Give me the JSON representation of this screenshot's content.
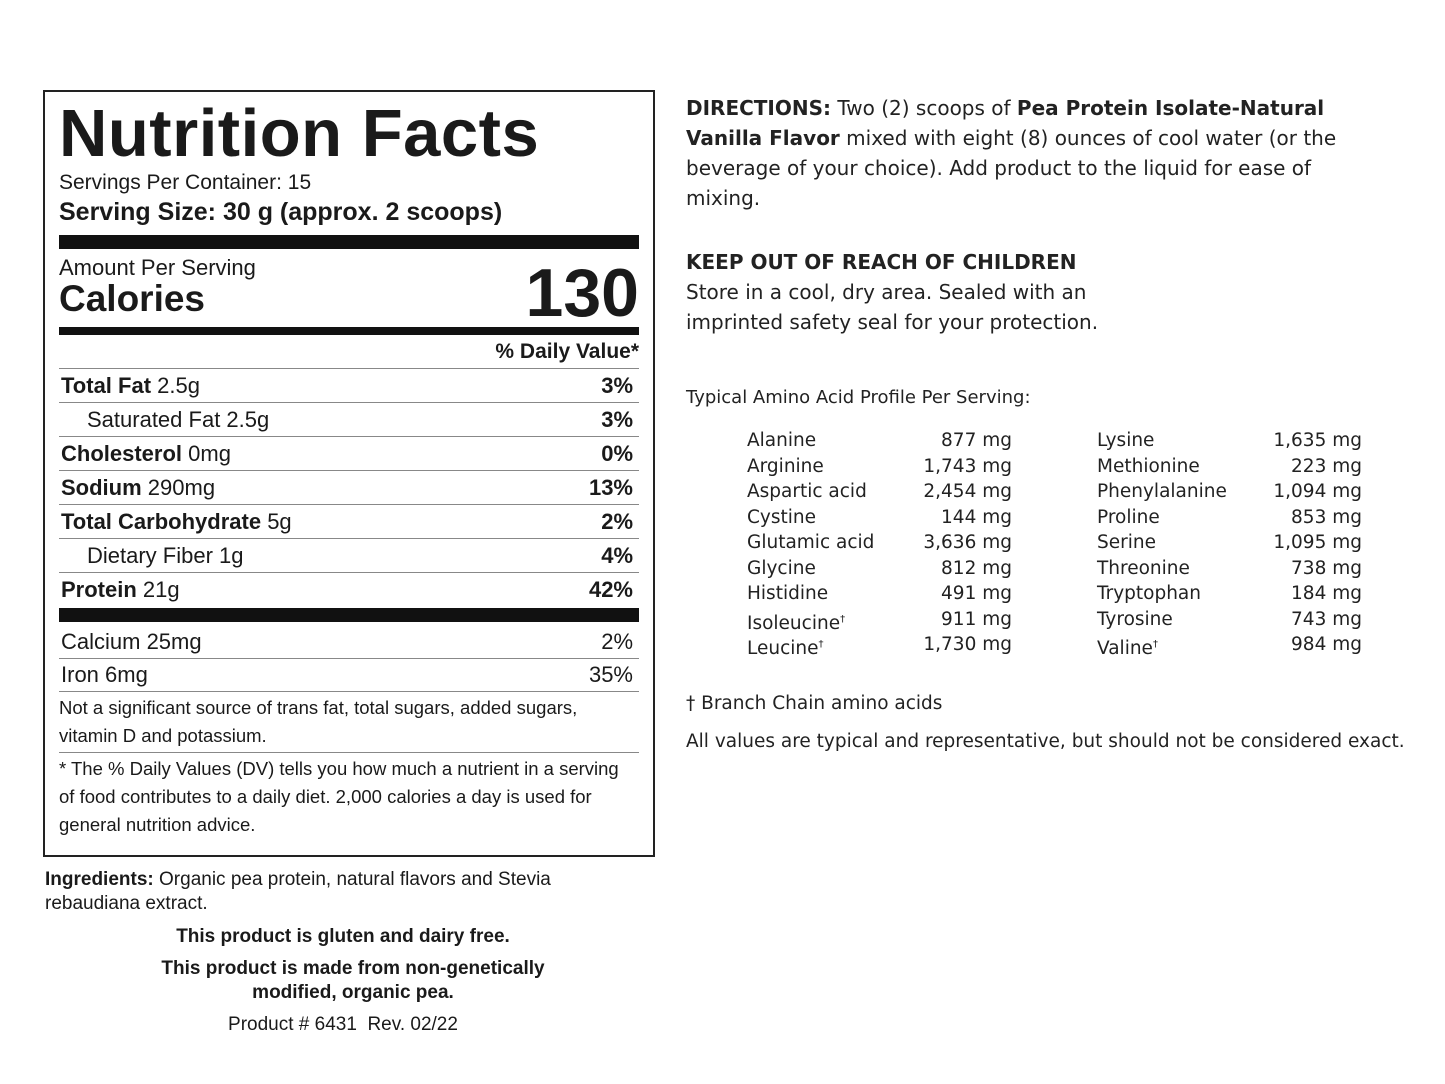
{
  "nutrition": {
    "title": "Nutrition Facts",
    "servings": "Servings Per Container: 15",
    "serving_size": "Serving Size: 30 g (approx. 2 scoops)",
    "amount_per_serving": "Amount Per Serving",
    "calories_label": "Calories",
    "calories": "130",
    "dv_header": "% Daily Value*",
    "nutrients": [
      {
        "name": "Total Fat",
        "amount": "2.5g",
        "dv": "3%",
        "sub": [
          {
            "name": "Saturated Fat 2.5g",
            "dv": "3%"
          }
        ]
      },
      {
        "name": "Cholesterol",
        "amount": "0mg",
        "dv": "0%",
        "sub": []
      },
      {
        "name": "Sodium",
        "amount": "290mg",
        "dv": "13%",
        "sub": []
      },
      {
        "name": "Total Carbohydrate",
        "amount": "5g",
        "dv": "2%",
        "sub": [
          {
            "name": "Dietary Fiber 1g",
            "dv": "4%"
          }
        ]
      },
      {
        "name": "Protein",
        "amount": "21g",
        "dv": "42%",
        "sub": []
      }
    ],
    "minerals": [
      {
        "name": "Calcium 25mg",
        "dv": "2%"
      },
      {
        "name": "Iron 6mg",
        "dv": "35%"
      }
    ],
    "footnote_1": "Not a significant source of trans fat, total sugars, added sugars, vitamin D and potassium.",
    "footnote_2": "* The % Daily Values (DV) tells you how much a nutrient in a serving of food contributes to a daily diet. 2,000 calories a day is used for general nutrition advice."
  },
  "ingredients": {
    "label": "Ingredients:",
    "text": "Organic pea protein, natural flavors and Stevia rebaudiana extract."
  },
  "statements": [
    "This product is gluten and dairy free.",
    "This product is made from non-genetically modified, organic pea."
  ],
  "product_code": "Product # 6431  Rev. 02/22",
  "directions": {
    "label": "DIRECTIONS:",
    "text_a": "Two (2) scoops of",
    "product": "Pea Protein Isolate-Natural Vanilla Flavor",
    "text_b": "mixed with eight (8) ounces of cool water (or the beverage of your choice). Add product to the liquid for ease of mixing."
  },
  "warning": {
    "title": "KEEP OUT OF REACH OF CHILDREN",
    "text": "Store in a cool, dry area. Sealed with an imprinted safety seal for your protection."
  },
  "amino": {
    "title": "Typical Amino Acid Profile Per Serving:",
    "columns": [
      [
        {
          "name": "Alanine",
          "amount": "877 mg"
        },
        {
          "name": "Arginine",
          "amount": "1,743 mg"
        },
        {
          "name": "Aspartic acid",
          "amount": "2,454 mg"
        },
        {
          "name": "Cystine",
          "amount": "144 mg"
        },
        {
          "name": "Glutamic acid",
          "amount": "3,636 mg"
        },
        {
          "name": "Glycine",
          "amount": "812 mg"
        },
        {
          "name": "Histidine",
          "amount": "491 mg"
        },
        {
          "name": "Isoleucine",
          "note": "†",
          "amount": "911 mg"
        },
        {
          "name": "Leucine",
          "note": "†",
          "amount": "1,730 mg"
        }
      ],
      [
        {
          "name": "Lysine",
          "amount": "1,635 mg"
        },
        {
          "name": "Methionine",
          "amount": "223 mg"
        },
        {
          "name": "Phenylalanine",
          "amount": "1,094 mg"
        },
        {
          "name": "Proline",
          "amount": "853 mg"
        },
        {
          "name": "Serine",
          "amount": "1,095 mg"
        },
        {
          "name": "Threonine",
          "amount": "738 mg"
        },
        {
          "name": "Tryptophan",
          "amount": "184 mg"
        },
        {
          "name": "Tyrosine",
          "amount": "743 mg"
        },
        {
          "name": "Valine",
          "note": "†",
          "amount": "984 mg"
        }
      ]
    ],
    "branch_note": "† Branch Chain amino acids",
    "disclaimer": "All values are typical and representative, but should not be considered exact."
  }
}
